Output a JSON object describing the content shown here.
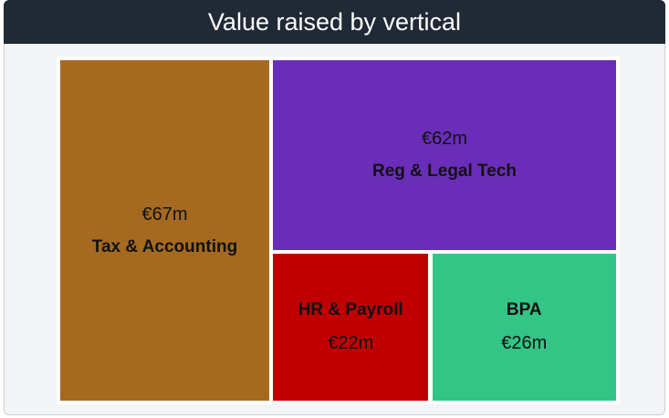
{
  "chart_data": {
    "type": "treemap",
    "title": "Value raised by vertical",
    "categories": [
      "Tax & Accounting",
      "Reg & Legal Tech",
      "HR & Payroll",
      "BPA"
    ],
    "values": [
      67,
      62,
      22,
      26
    ],
    "value_labels": [
      "€67m",
      "€62m",
      "€22m",
      "€26m"
    ],
    "colors": [
      "#a56a20",
      "#6a2db8",
      "#c00000",
      "#33c486"
    ]
  }
}
